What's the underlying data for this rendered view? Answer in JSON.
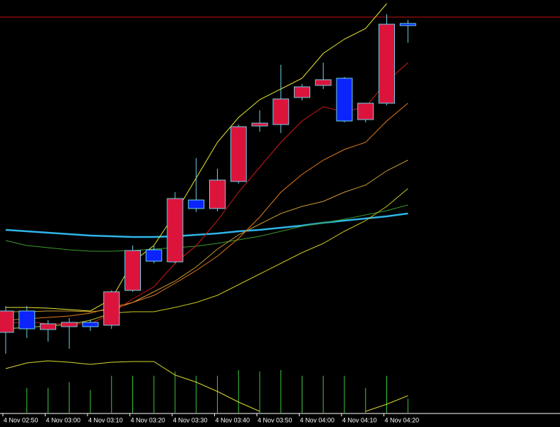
{
  "chart_data": {
    "type": "candlestick",
    "categories": [
      "4 Nov 02:50",
      null,
      "4 Nov 03:00",
      null,
      "4 Nov 03:10",
      null,
      "4 Nov 03:20",
      null,
      "4 Nov 03:30",
      null,
      "4 Nov 03:40",
      null,
      "4 Nov 03:50",
      null,
      "4 Nov 04:00",
      null,
      "4 Nov 04:10",
      null,
      "4 Nov 04:20",
      null
    ],
    "open": [
      113,
      143,
      117,
      121,
      127,
      123,
      172,
      229,
      212,
      299,
      287,
      325,
      403,
      405,
      443,
      460,
      470,
      412,
      435,
      547
    ],
    "high": [
      150,
      150,
      130,
      133,
      131,
      172,
      235,
      235,
      310,
      358,
      343,
      405,
      425,
      489,
      462,
      492,
      472,
      435,
      560,
      552
    ],
    "low": [
      83,
      105,
      100,
      90,
      115,
      118,
      170,
      210,
      210,
      282,
      283,
      322,
      395,
      393,
      439,
      455,
      408,
      408,
      432,
      520
    ],
    "close": [
      143,
      118,
      125,
      127,
      121,
      170,
      228,
      213,
      301,
      287,
      327,
      402,
      407,
      441,
      458,
      468,
      410,
      435,
      546,
      544
    ],
    "up_color": "#dc143c",
    "down_color": "#0b24fb",
    "wick_color": "#6ecfe6",
    "level": 556,
    "level_color": "#c41010",
    "ylim": [
      0,
      580
    ],
    "series": [
      {
        "color": "#2fb4e6",
        "values": [
          257,
          255,
          253,
          251,
          249,
          248,
          247,
          247,
          248,
          250,
          252,
          255,
          257,
          260,
          263,
          267,
          270,
          273,
          276,
          280
        ]
      },
      {
        "color": "#3a9a2a",
        "values": [
          242,
          235,
          232,
          229,
          227,
          227,
          228,
          230,
          232,
          234,
          238,
          243,
          248,
          255,
          262,
          267,
          272,
          278,
          284,
          292
        ]
      },
      {
        "color": "#c8c820",
        "values": [
          118,
          120,
          122,
          124,
          130,
          140,
          142,
          142,
          148,
          155,
          165,
          180,
          195,
          210,
          225,
          238,
          255,
          270,
          290,
          315
        ]
      },
      {
        "color": "#c89a30",
        "values": [
          142,
          142,
          143,
          143,
          142,
          145,
          155,
          170,
          185,
          205,
          230,
          250,
          265,
          280,
          290,
          297,
          310,
          320,
          340,
          355
        ]
      },
      {
        "color": "#e07a20",
        "values": [
          130,
          132,
          134,
          136,
          140,
          148,
          155,
          165,
          182,
          200,
          220,
          245,
          275,
          310,
          335,
          355,
          370,
          380,
          410,
          435
        ]
      },
      {
        "color": "#d01818",
        "values": [
          125,
          128,
          125,
          125,
          125,
          140,
          160,
          177,
          210,
          235,
          270,
          310,
          345,
          380,
          410,
          430,
          423,
          430,
          465,
          492
        ]
      },
      {
        "color": "#e8e830",
        "values": [
          148,
          148,
          147,
          145,
          143,
          160,
          212,
          235,
          280,
          330,
          380,
          415,
          440,
          455,
          470,
          505,
          525,
          540,
          575,
          null
        ]
      }
    ],
    "volume": [
      0,
      35,
      35,
      43,
      32,
      52,
      52,
      52,
      58,
      52,
      52,
      60,
      58,
      60,
      52,
      52,
      52,
      35,
      52,
      20
    ],
    "volume_color": "#3cc83c",
    "oscillator": [
      62,
      70,
      73,
      71,
      68,
      71,
      72,
      72,
      53,
      43,
      30,
      15,
      2,
      null,
      null,
      null,
      null,
      2,
      12,
      24
    ],
    "oscillator_color": "#d8d830",
    "y2lim": [
      0,
      80
    ]
  }
}
